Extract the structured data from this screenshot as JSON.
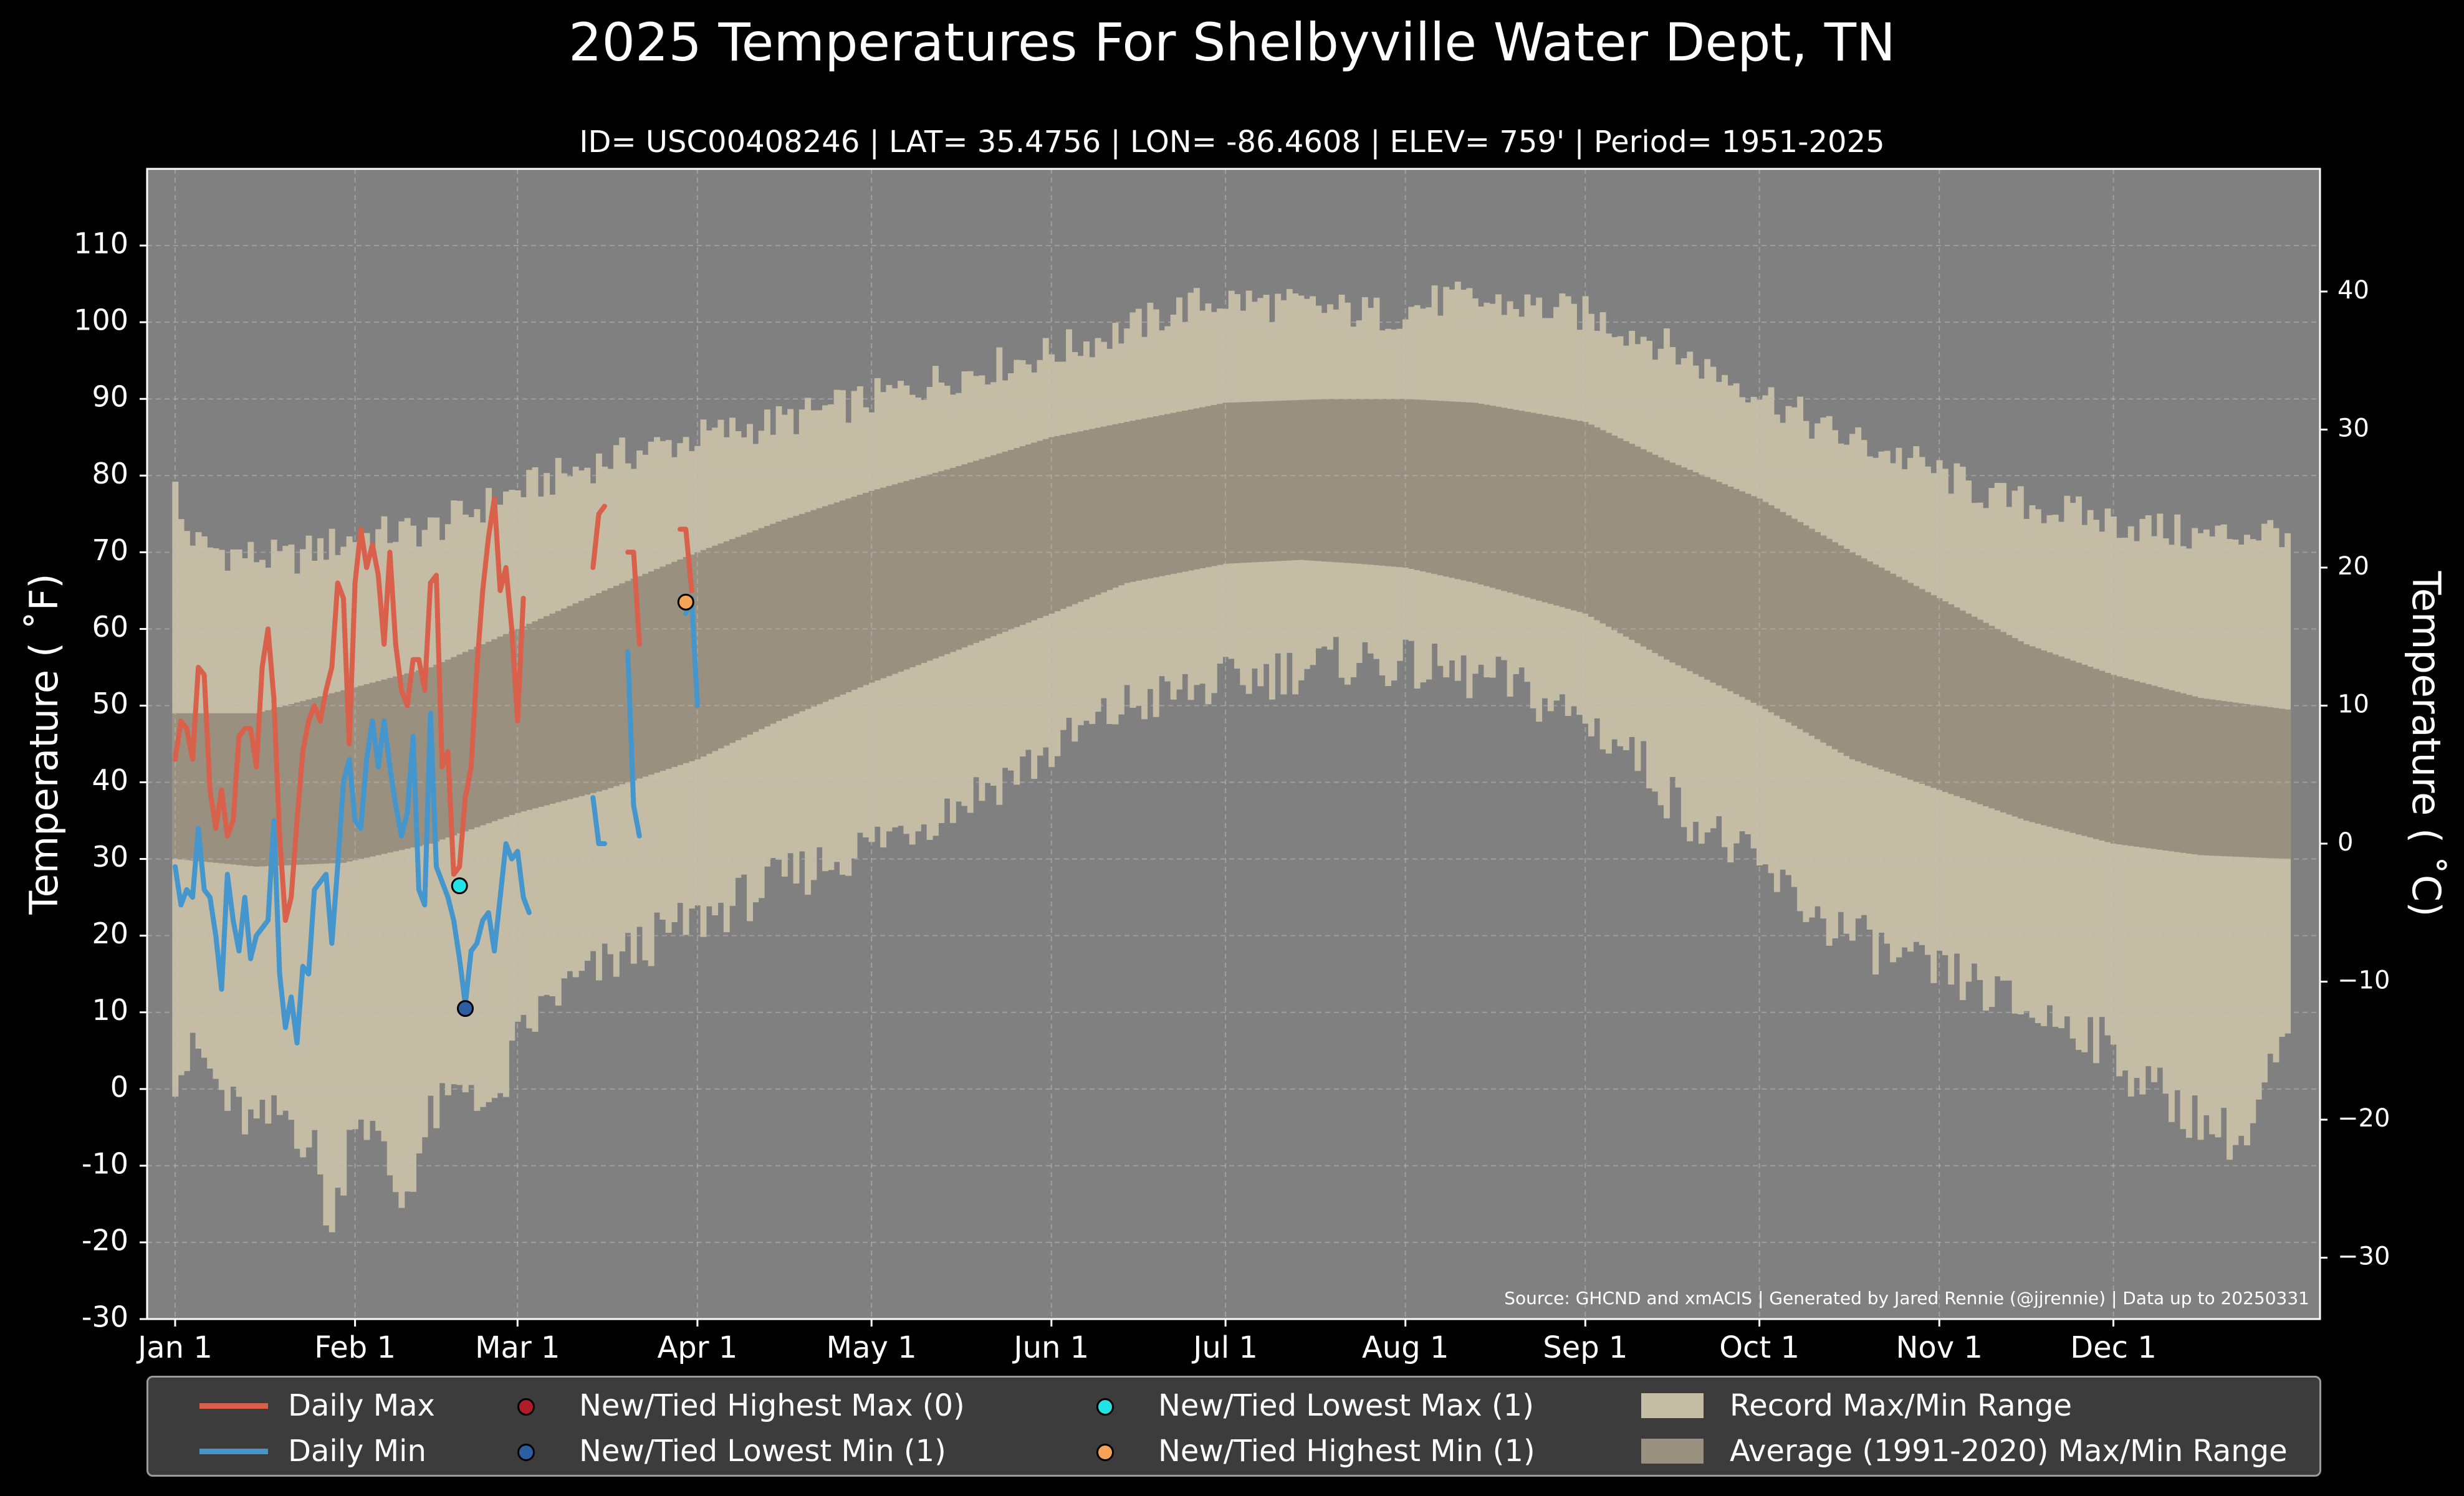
{
  "chart_data": {
    "type": "line",
    "title": "2025 Temperatures For Shelbyville Water Dept, TN",
    "subtitle": "ID= USC00408246 | LAT= 35.4756 | LON= -86.4608 | ELEV= 759' | Period= 1951-2025",
    "ylabel": "Temperature ($^\\circ$F)",
    "ylabel_display": "Temperature ( ˚F)",
    "ylabel_right": "Temperature ( ˚C)",
    "ylim": [
      -30,
      120
    ],
    "ylim_right_c": [
      -34.4,
      48.9
    ],
    "y_ticks": [
      -30,
      -20,
      -10,
      0,
      10,
      20,
      30,
      40,
      50,
      60,
      70,
      80,
      90,
      100,
      110
    ],
    "y_ticks_right": [
      -30,
      -20,
      -10,
      0,
      10,
      20,
      30,
      40
    ],
    "x_ticks": [
      {
        "label": "Jan 1",
        "day": 1
      },
      {
        "label": "Feb 1",
        "day": 32
      },
      {
        "label": "Mar 1",
        "day": 60
      },
      {
        "label": "Apr 1",
        "day": 91
      },
      {
        "label": "May 1",
        "day": 121
      },
      {
        "label": "Jun 1",
        "day": 152
      },
      {
        "label": "Jul 1",
        "day": 182
      },
      {
        "label": "Aug 1",
        "day": 213
      },
      {
        "label": "Sep 1",
        "day": 244
      },
      {
        "label": "Oct 1",
        "day": 274
      },
      {
        "label": "Nov 1",
        "day": 305
      },
      {
        "label": "Dec 1",
        "day": 335
      }
    ],
    "grid": true,
    "source_note": "Source: GHCND and xmACIS | Generated by Jared Rennie (@jjrennie) | Data up to 20250331",
    "colors": {
      "background": "#000000",
      "plot_bg": "#808080",
      "record_range": "#c4bca5",
      "normal_range": "#9a9080",
      "daily_max": "#d9604b",
      "daily_min": "#4596cc",
      "new_highest_max": "#b01c28",
      "new_lowest_min": "#2d5ea3",
      "new_lowest_max": "#22e4e4",
      "new_highest_min": "#f5a455"
    },
    "record_range": {
      "name": "Record Max/Min Range",
      "max_anchors": [
        [
          1,
          78
        ],
        [
          2,
          74
        ],
        [
          5,
          71
        ],
        [
          10,
          70
        ],
        [
          20,
          69
        ],
        [
          32,
          72
        ],
        [
          45,
          73
        ],
        [
          60,
          78
        ],
        [
          75,
          82
        ],
        [
          91,
          85
        ],
        [
          105,
          87
        ],
        [
          121,
          90
        ],
        [
          135,
          93
        ],
        [
          152,
          96
        ],
        [
          165,
          99
        ],
        [
          175,
          102
        ],
        [
          182,
          103
        ],
        [
          195,
          102
        ],
        [
          210,
          101
        ],
        [
          220,
          103
        ],
        [
          235,
          102
        ],
        [
          244,
          101
        ],
        [
          255,
          98
        ],
        [
          265,
          94
        ],
        [
          274,
          91
        ],
        [
          285,
          86
        ],
        [
          300,
          82
        ],
        [
          315,
          77
        ],
        [
          335,
          74
        ],
        [
          350,
          72
        ],
        [
          365,
          73
        ]
      ],
      "min_anchors": [
        [
          1,
          2
        ],
        [
          5,
          5
        ],
        [
          10,
          -2
        ],
        [
          15,
          -5
        ],
        [
          20,
          -3
        ],
        [
          25,
          -8
        ],
        [
          28,
          -19
        ],
        [
          32,
          -2
        ],
        [
          36,
          -7
        ],
        [
          40,
          -15
        ],
        [
          45,
          -4
        ],
        [
          52,
          1
        ],
        [
          56,
          -4
        ],
        [
          60,
          6
        ],
        [
          66,
          12
        ],
        [
          75,
          16
        ],
        [
          82,
          19
        ],
        [
          91,
          22
        ],
        [
          105,
          27
        ],
        [
          121,
          32
        ],
        [
          135,
          37
        ],
        [
          152,
          44
        ],
        [
          165,
          50
        ],
        [
          182,
          53
        ],
        [
          195,
          55
        ],
        [
          205,
          56
        ],
        [
          215,
          55
        ],
        [
          230,
          53
        ],
        [
          244,
          48
        ],
        [
          252,
          44
        ],
        [
          260,
          37
        ],
        [
          270,
          31
        ],
        [
          285,
          22
        ],
        [
          300,
          16
        ],
        [
          310,
          14
        ],
        [
          320,
          10
        ],
        [
          330,
          8
        ],
        [
          340,
          1
        ],
        [
          350,
          -4
        ],
        [
          355,
          -6
        ],
        [
          358,
          -7
        ],
        [
          362,
          2
        ],
        [
          365,
          6
        ]
      ],
      "max_noise": 2.5,
      "min_noise": 3.5
    },
    "normal_range": {
      "name": "Average (1991-2020) Max/Min Range",
      "max_anchors": [
        [
          1,
          49
        ],
        [
          15,
          49
        ],
        [
          30,
          52
        ],
        [
          45,
          55
        ],
        [
          60,
          60
        ],
        [
          75,
          65
        ],
        [
          91,
          70
        ],
        [
          105,
          74
        ],
        [
          121,
          78
        ],
        [
          135,
          81
        ],
        [
          152,
          85
        ],
        [
          165,
          87
        ],
        [
          182,
          89.5
        ],
        [
          200,
          90
        ],
        [
          213,
          90
        ],
        [
          225,
          89.5
        ],
        [
          244,
          87
        ],
        [
          258,
          82
        ],
        [
          274,
          77
        ],
        [
          290,
          70
        ],
        [
          305,
          64
        ],
        [
          320,
          58
        ],
        [
          335,
          54
        ],
        [
          350,
          51
        ],
        [
          365,
          49.5
        ]
      ],
      "min_anchors": [
        [
          1,
          30
        ],
        [
          15,
          29
        ],
        [
          30,
          29.5
        ],
        [
          45,
          32
        ],
        [
          60,
          36
        ],
        [
          75,
          39
        ],
        [
          91,
          43
        ],
        [
          105,
          48
        ],
        [
          121,
          53
        ],
        [
          135,
          57
        ],
        [
          152,
          62
        ],
        [
          165,
          66
        ],
        [
          182,
          68.5
        ],
        [
          195,
          69
        ],
        [
          205,
          68.5
        ],
        [
          213,
          68
        ],
        [
          225,
          66
        ],
        [
          244,
          62
        ],
        [
          258,
          56
        ],
        [
          274,
          50
        ],
        [
          290,
          43
        ],
        [
          305,
          39
        ],
        [
          320,
          35
        ],
        [
          335,
          32
        ],
        [
          350,
          30.5
        ],
        [
          365,
          30
        ]
      ]
    },
    "series": [
      {
        "name": "Daily Max",
        "segments": [
          {
            "start_day": 1,
            "values": [
              43,
              48,
              47,
              43,
              55,
              54,
              39,
              34,
              39,
              33,
              35,
              46,
              47,
              47,
              42,
              55,
              60,
              51,
              33,
              22,
              25,
              35,
              44,
              48,
              50,
              48,
              52,
              55,
              66,
              64,
              45,
              66,
              73,
              68,
              71,
              67,
              58,
              70,
              58,
              52,
              50,
              56,
              56,
              52,
              66,
              67,
              42,
              44,
              28,
              29,
              38,
              42,
              55,
              65,
              72,
              77,
              65,
              68,
              60,
              48,
              64
            ]
          },
          {
            "start_day": 73,
            "values": [
              68,
              75,
              76
            ]
          },
          {
            "start_day": 79,
            "values": [
              70,
              70,
              58
            ]
          },
          {
            "start_day": 88,
            "values": [
              73,
              73,
              65
            ]
          }
        ]
      },
      {
        "name": "Daily Min",
        "segments": [
          {
            "start_day": 1,
            "values": [
              29,
              24,
              26,
              25,
              34,
              26,
              25,
              20,
              13,
              28,
              22,
              18,
              25,
              17,
              20,
              21,
              22,
              35,
              15,
              8,
              12,
              6,
              16,
              15,
              26,
              27,
              28,
              19,
              29,
              40,
              43,
              35,
              34,
              43,
              48,
              42,
              48,
              42,
              37,
              33,
              36,
              46,
              26,
              24,
              49,
              29,
              27,
              25,
              22,
              17,
              11,
              18,
              19,
              22,
              23,
              18,
              25,
              32,
              30,
              31,
              25,
              23
            ]
          },
          {
            "start_day": 73,
            "values": [
              38,
              32,
              32
            ]
          },
          {
            "start_day": 79,
            "values": [
              57,
              37,
              33
            ]
          },
          {
            "start_day": 89,
            "values": [
              62,
              64,
              50
            ]
          }
        ]
      }
    ],
    "markers": [
      {
        "name": "New/Tied Lowest Max (1)",
        "day": 50,
        "value": 26.5,
        "color_key": "new_lowest_max"
      },
      {
        "name": "New/Tied Lowest Min (1)",
        "day": 51,
        "value": 10.5,
        "color_key": "new_lowest_min"
      },
      {
        "name": "New/Tied Highest Min (1)",
        "day": 89,
        "value": 63.5,
        "color_key": "new_highest_min"
      }
    ],
    "legend_placement": "bottom"
  },
  "legend": {
    "daily_max": "Daily Max",
    "daily_min": "Daily Min",
    "new_highest_max": "New/Tied Highest Max (0)",
    "new_lowest_min": "New/Tied Lowest Min (1)",
    "new_lowest_max": "New/Tied Lowest Max (1)",
    "new_highest_min": "New/Tied Highest Min (1)",
    "record_range": "Record Max/Min Range",
    "normal_range": "Average (1991-2020) Max/Min Range"
  }
}
